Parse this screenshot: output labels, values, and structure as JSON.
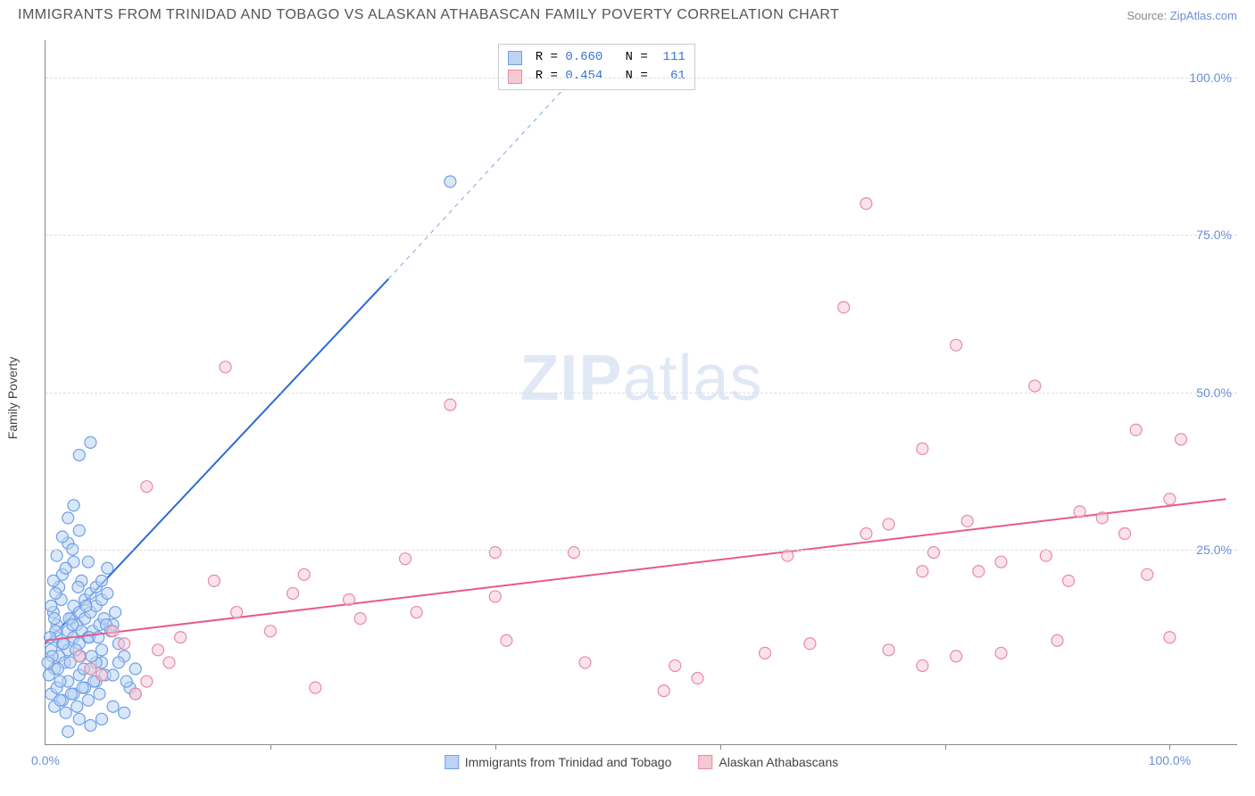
{
  "title": "IMMIGRANTS FROM TRINIDAD AND TOBAGO VS ALASKAN ATHABASCAN FAMILY POVERTY CORRELATION CHART",
  "source_prefix": "Source: ",
  "source_link": "ZipAtlas.com",
  "y_axis_label": "Family Poverty",
  "watermark_a": "ZIP",
  "watermark_b": "atlas",
  "chart": {
    "type": "scatter",
    "xlim": [
      0,
      106
    ],
    "ylim": [
      -6,
      106
    ],
    "y_ticks": [
      {
        "v": 25,
        "label": "25.0%"
      },
      {
        "v": 50,
        "label": "50.0%"
      },
      {
        "v": 75,
        "label": "75.0%"
      },
      {
        "v": 100,
        "label": "100.0%"
      }
    ],
    "x_ticks": [
      {
        "v": 0,
        "label": "0.0%"
      },
      {
        "v": 20,
        "label": ""
      },
      {
        "v": 40,
        "label": ""
      },
      {
        "v": 60,
        "label": ""
      },
      {
        "v": 80,
        "label": ""
      },
      {
        "v": 100,
        "label": "100.0%"
      }
    ],
    "grid_color": "#dddddd",
    "background_color": "#ffffff",
    "marker_radius": 6.5,
    "marker_stroke_width": 1.2,
    "series": [
      {
        "name": "Immigrants from Trinidad and Tobago",
        "fill": "#bcd3f2",
        "stroke": "#6fa0e6",
        "fill_opacity": 0.55,
        "r_value": "0.660",
        "n_value": "111",
        "trend": {
          "x1": 0,
          "y1": 10,
          "x2_solid": 30.5,
          "y2_solid": 68,
          "x2_dash": 47,
          "y2_dash": 100,
          "color": "#2e6bd6",
          "width": 2
        },
        "points": [
          [
            0.5,
            9
          ],
          [
            0.8,
            6
          ],
          [
            1,
            11
          ],
          [
            1.2,
            8
          ],
          [
            1,
            13
          ],
          [
            1.5,
            10
          ],
          [
            1.7,
            7
          ],
          [
            2,
            12
          ],
          [
            2,
            9
          ],
          [
            2.3,
            14
          ],
          [
            2.5,
            11
          ],
          [
            2.5,
            16
          ],
          [
            2.8,
            13
          ],
          [
            3,
            10
          ],
          [
            3,
            15
          ],
          [
            3.2,
            12
          ],
          [
            3.5,
            17
          ],
          [
            3.5,
            14
          ],
          [
            3.8,
            11
          ],
          [
            4,
            18
          ],
          [
            4,
            15
          ],
          [
            4.2,
            12
          ],
          [
            4.5,
            19
          ],
          [
            4.5,
            16
          ],
          [
            4.8,
            13
          ],
          [
            5,
            20
          ],
          [
            5,
            17
          ],
          [
            5.2,
            14
          ],
          [
            5.5,
            22
          ],
          [
            5.5,
            18
          ],
          [
            0.5,
            2
          ],
          [
            1,
            3
          ],
          [
            1.5,
            1
          ],
          [
            2,
            4
          ],
          [
            2.5,
            2
          ],
          [
            3,
            5
          ],
          [
            3.5,
            3
          ],
          [
            4,
            6
          ],
          [
            4.5,
            4
          ],
          [
            5,
            7
          ],
          [
            0.8,
            0
          ],
          [
            1.3,
            1
          ],
          [
            1.8,
            -1
          ],
          [
            2.3,
            2
          ],
          [
            2.8,
            0
          ],
          [
            3.3,
            3
          ],
          [
            3.8,
            1
          ],
          [
            4.3,
            4
          ],
          [
            4.8,
            2
          ],
          [
            5.3,
            5
          ],
          [
            1,
            24
          ],
          [
            1.5,
            21
          ],
          [
            2,
            26
          ],
          [
            2.5,
            23
          ],
          [
            3,
            28
          ],
          [
            1.2,
            19
          ],
          [
            1.8,
            22
          ],
          [
            2.4,
            25
          ],
          [
            3.2,
            20
          ],
          [
            3.8,
            23
          ],
          [
            0.7,
            15
          ],
          [
            1.4,
            17
          ],
          [
            2.1,
            14
          ],
          [
            2.9,
            19
          ],
          [
            3.6,
            16
          ],
          [
            0.9,
            12
          ],
          [
            1.6,
            10
          ],
          [
            2.4,
            13
          ],
          [
            3.1,
            8
          ],
          [
            3.9,
            11
          ],
          [
            3,
            40
          ],
          [
            4,
            42
          ],
          [
            2,
            30
          ],
          [
            2.5,
            32
          ],
          [
            1.5,
            27
          ],
          [
            6,
            5
          ],
          [
            7,
            8
          ],
          [
            8,
            6
          ],
          [
            7.5,
            3
          ],
          [
            6.5,
            10
          ],
          [
            5,
            -2
          ],
          [
            6,
            0
          ],
          [
            7,
            -1
          ],
          [
            4,
            -3
          ],
          [
            3,
            -2
          ],
          [
            2,
            -4
          ],
          [
            8,
            2
          ],
          [
            6,
            13
          ],
          [
            5,
            9
          ],
          [
            4.5,
            7
          ],
          [
            0.3,
            5
          ],
          [
            0.6,
            8
          ],
          [
            0.4,
            11
          ],
          [
            0.2,
            7
          ],
          [
            0.8,
            14
          ],
          [
            1.1,
            6
          ],
          [
            0.5,
            16
          ],
          [
            0.9,
            18
          ],
          [
            1.3,
            4
          ],
          [
            0.7,
            20
          ],
          [
            2.2,
            7
          ],
          [
            2.7,
            9
          ],
          [
            3.4,
            6
          ],
          [
            4.1,
            8
          ],
          [
            4.7,
            11
          ],
          [
            5.4,
            13
          ],
          [
            6.2,
            15
          ],
          [
            5.8,
            12
          ],
          [
            6.5,
            7
          ],
          [
            7.2,
            4
          ],
          [
            36,
            83.5
          ]
        ]
      },
      {
        "name": "Alaskan Athabascans",
        "fill": "#f6c8d4",
        "stroke": "#e88aa5",
        "fill_opacity": 0.5,
        "r_value": "0.454",
        "n_value": "61",
        "trend": {
          "x1": 0,
          "y1": 10.5,
          "x2_solid": 105,
          "y2_solid": 33,
          "color": "#e85a8a",
          "width": 2
        },
        "points": [
          [
            3,
            8
          ],
          [
            5,
            5
          ],
          [
            7,
            10
          ],
          [
            9,
            4
          ],
          [
            11,
            7
          ],
          [
            6,
            12
          ],
          [
            8,
            2
          ],
          [
            10,
            9
          ],
          [
            4,
            6
          ],
          [
            12,
            11
          ],
          [
            9,
            35
          ],
          [
            16,
            54
          ],
          [
            15,
            20
          ],
          [
            17,
            15
          ],
          [
            20,
            12
          ],
          [
            22,
            18
          ],
          [
            24,
            3
          ],
          [
            23,
            21
          ],
          [
            28,
            14
          ],
          [
            27,
            17
          ],
          [
            32,
            23.5
          ],
          [
            33,
            15
          ],
          [
            36,
            48
          ],
          [
            40,
            17.5
          ],
          [
            40,
            24.5
          ],
          [
            41,
            10.5
          ],
          [
            47,
            24.5
          ],
          [
            55,
            2.5
          ],
          [
            56,
            6.5
          ],
          [
            58,
            4.5
          ],
          [
            64,
            8.5
          ],
          [
            68,
            10
          ],
          [
            71,
            63.5
          ],
          [
            73,
            27.5
          ],
          [
            73,
            80
          ],
          [
            75,
            9
          ],
          [
            75,
            29
          ],
          [
            78,
            21.5
          ],
          [
            78,
            41
          ],
          [
            79,
            24.5
          ],
          [
            81,
            57.5
          ],
          [
            81,
            8
          ],
          [
            82,
            29.5
          ],
          [
            83,
            21.5
          ],
          [
            85,
            23
          ],
          [
            85,
            8.5
          ],
          [
            88,
            51
          ],
          [
            89,
            24
          ],
          [
            90,
            10.5
          ],
          [
            91,
            20
          ],
          [
            92,
            31
          ],
          [
            94,
            30
          ],
          [
            96,
            27.5
          ],
          [
            97,
            44
          ],
          [
            98,
            21
          ],
          [
            100,
            33
          ],
          [
            101,
            42.5
          ],
          [
            100,
            11
          ],
          [
            78,
            6.5
          ],
          [
            66,
            24
          ],
          [
            48,
            7
          ]
        ]
      }
    ]
  },
  "legend_top_r": "R = ",
  "legend_top_n": "N = "
}
